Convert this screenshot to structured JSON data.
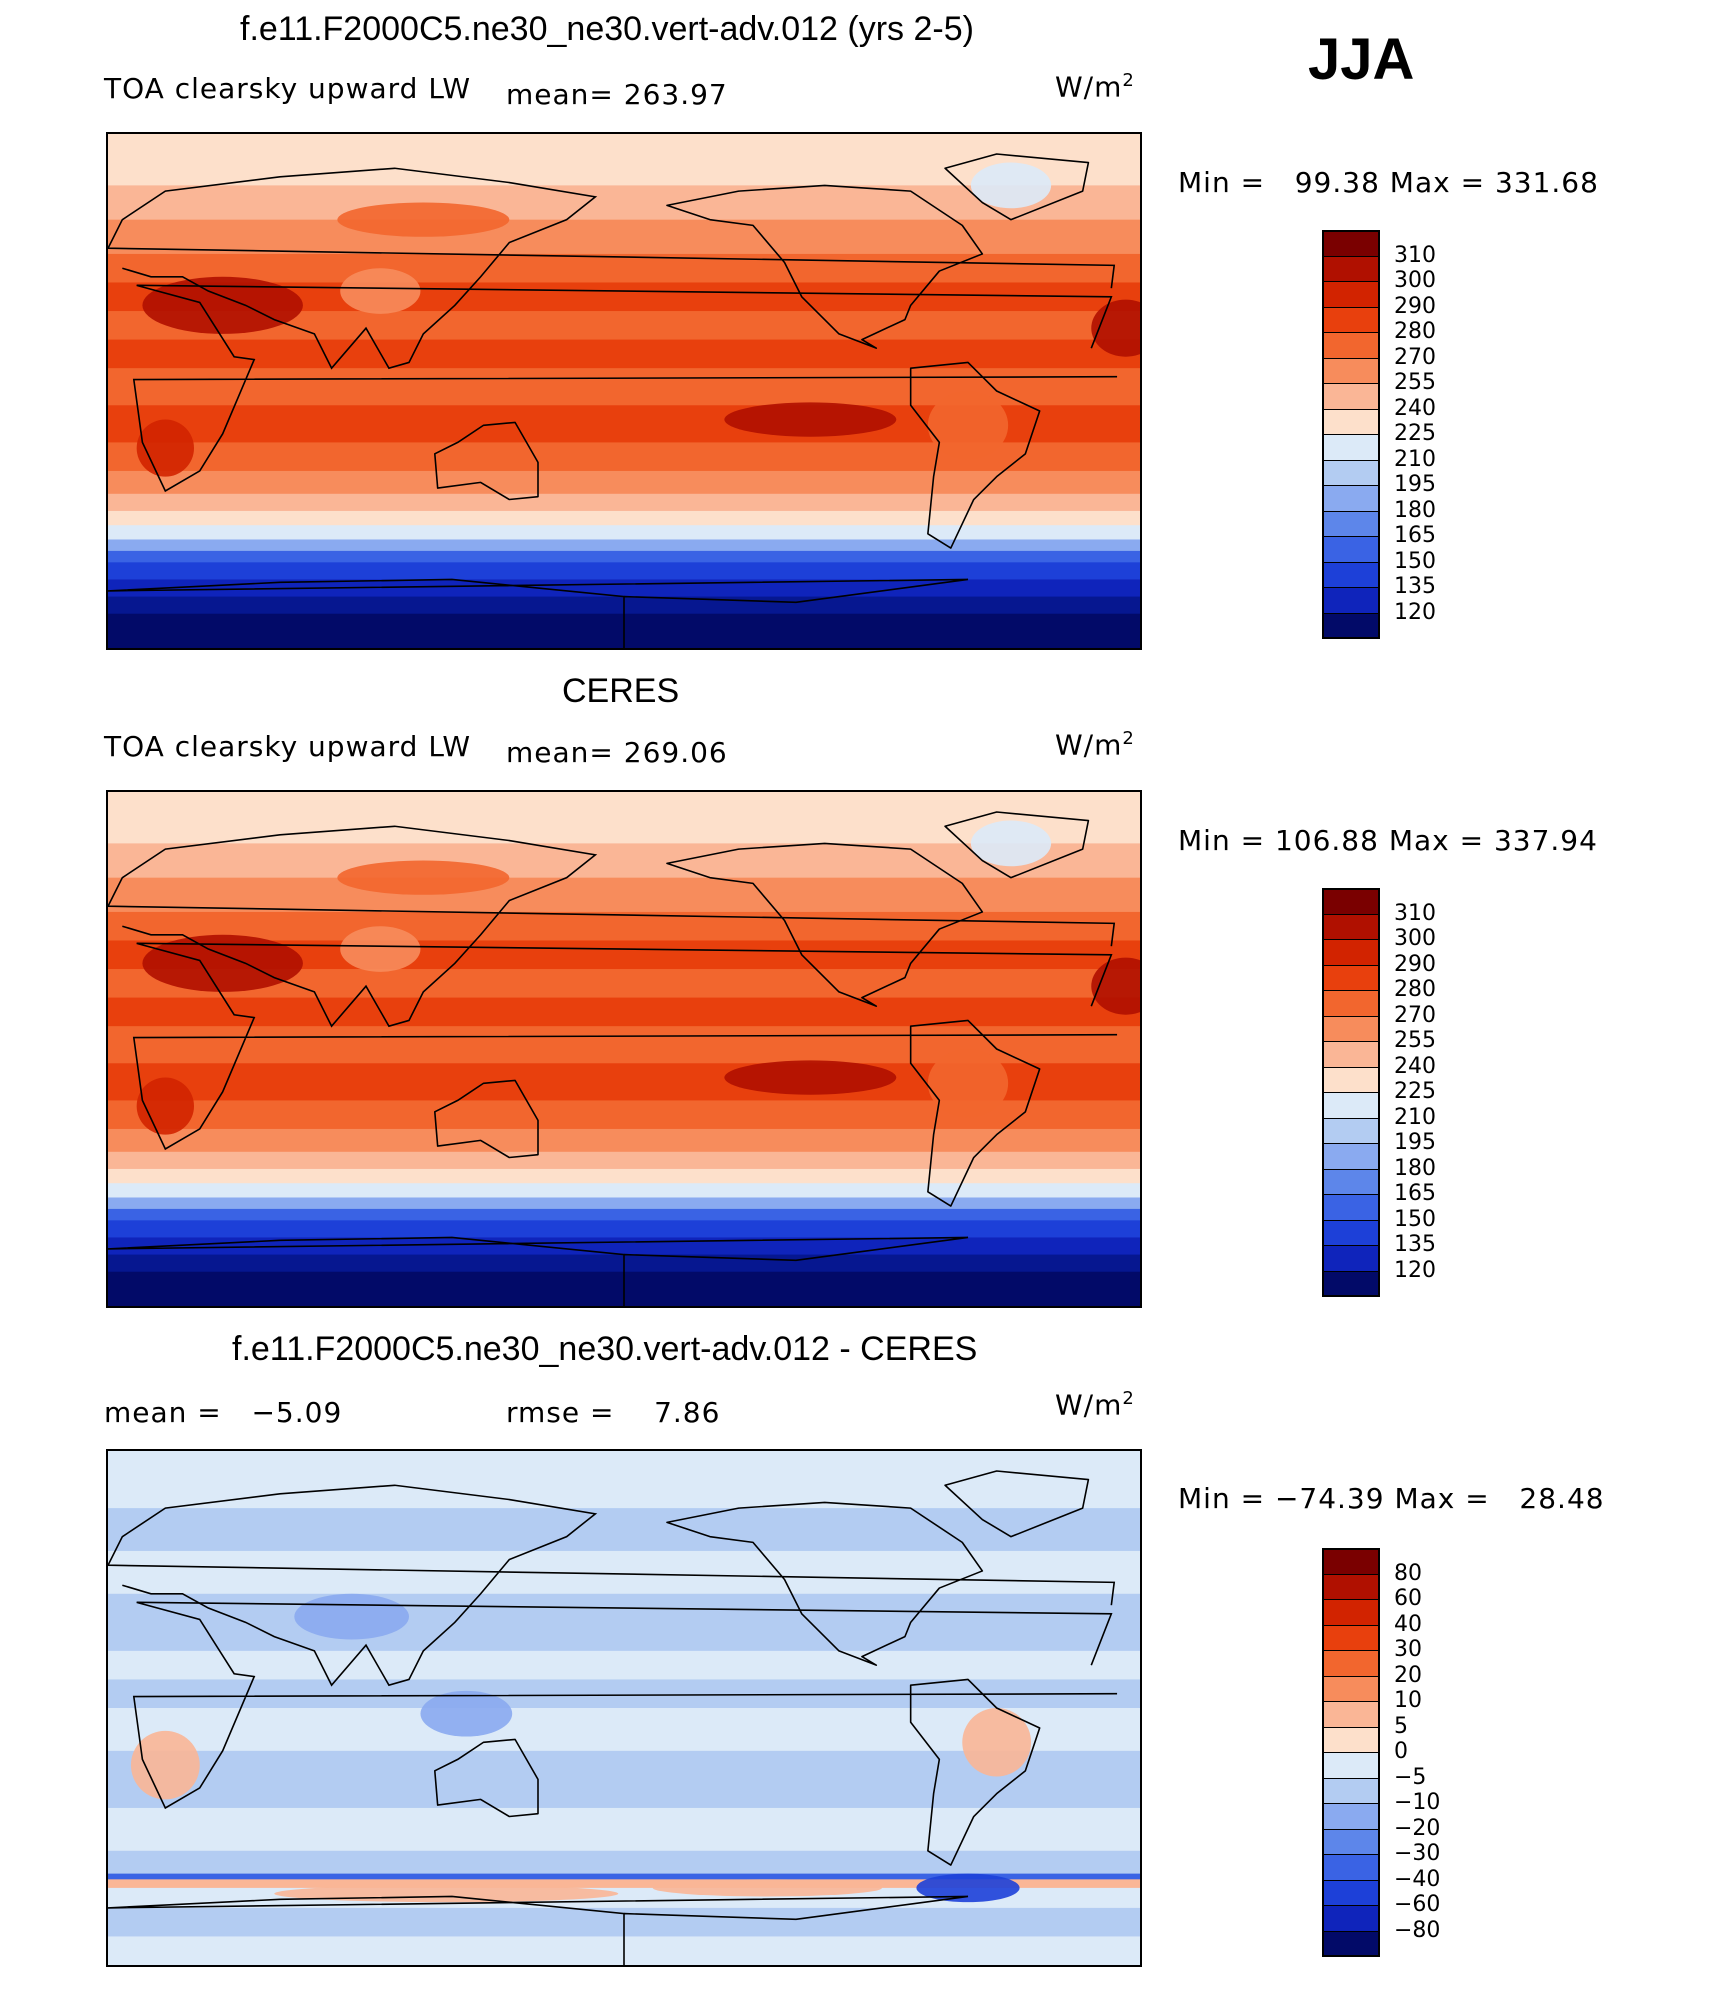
{
  "season": "JJA",
  "units": "W/m",
  "units_exp": "2",
  "panels": [
    {
      "title": "f.e11.F2000C5.ne30_ne30.vert-adv.012 (yrs 2-5)",
      "left_label": "TOA clearsky upward LW",
      "mid_label": "mean= 263.97",
      "minmax": "Min =   99.38 Max = 331.68",
      "colorbar": [
        "310",
        "300",
        "290",
        "280",
        "270",
        "255",
        "240",
        "225",
        "210",
        "195",
        "180",
        "165",
        "150",
        "135",
        "120"
      ],
      "palette": [
        "#7a0000",
        "#b01000",
        "#d22300",
        "#e8400d",
        "#f2662e",
        "#f78c5c",
        "#fab696",
        "#fde0cb",
        "#fdf3e8",
        "#dceaf8",
        "#b3ccf2",
        "#8aaaf0",
        "#5d86ea",
        "#3a63e4",
        "#1d40d8",
        "#0f24bb",
        "#061790",
        "#020a68"
      ]
    },
    {
      "title": "CERES",
      "left_label": "TOA clearsky upward LW",
      "mid_label": "mean= 269.06",
      "minmax": "Min = 106.88 Max = 337.94",
      "colorbar": [
        "310",
        "300",
        "290",
        "280",
        "270",
        "255",
        "240",
        "225",
        "210",
        "195",
        "180",
        "165",
        "150",
        "135",
        "120"
      ],
      "palette": [
        "#7a0000",
        "#b01000",
        "#d22300",
        "#e8400d",
        "#f2662e",
        "#f78c5c",
        "#fab696",
        "#fde0cb",
        "#fdf3e8",
        "#dceaf8",
        "#b3ccf2",
        "#8aaaf0",
        "#5d86ea",
        "#3a63e4",
        "#1d40d8",
        "#0f24bb",
        "#061790",
        "#020a68"
      ]
    },
    {
      "title": "f.e11.F2000C5.ne30_ne30.vert-adv.012 - CERES",
      "left_label": "mean =   −5.09",
      "mid_label": "rmse =    7.86",
      "minmax": "Min = −74.39 Max =   28.48",
      "colorbar": [
        "80",
        "60",
        "40",
        "30",
        "20",
        "10",
        "5",
        "0",
        "−5",
        "−10",
        "−20",
        "−30",
        "−40",
        "−60",
        "−80"
      ],
      "palette": [
        "#7a0000",
        "#b01000",
        "#d22300",
        "#e8400d",
        "#f2662e",
        "#f78c5c",
        "#fab696",
        "#fde0cb",
        "#fdf3e8",
        "#dceaf8",
        "#b3ccf2",
        "#8aaaf0",
        "#5d86ea",
        "#3a63e4",
        "#1d40d8",
        "#0f24bb",
        "#061790",
        "#020a68"
      ]
    }
  ],
  "chart_data": [
    {
      "type": "heatmap",
      "title": "f.e11.F2000C5.ne30_ne30.vert-adv.012 (yrs 2-5)",
      "subtitle": "TOA clearsky upward LW",
      "units": "W/m2",
      "mean": 263.97,
      "min": 99.38,
      "max": 331.68,
      "contour_levels": [
        120,
        135,
        150,
        165,
        180,
        195,
        210,
        225,
        240,
        255,
        270,
        280,
        290,
        300,
        310
      ]
    },
    {
      "type": "heatmap",
      "title": "CERES",
      "subtitle": "TOA clearsky upward LW",
      "units": "W/m2",
      "mean": 269.06,
      "min": 106.88,
      "max": 337.94,
      "contour_levels": [
        120,
        135,
        150,
        165,
        180,
        195,
        210,
        225,
        240,
        255,
        270,
        280,
        290,
        300,
        310
      ]
    },
    {
      "type": "heatmap",
      "title": "f.e11.F2000C5.ne30_ne30.vert-adv.012 - CERES",
      "units": "W/m2",
      "mean": -5.09,
      "rmse": 7.86,
      "min": -74.39,
      "max": 28.48,
      "contour_levels": [
        -80,
        -60,
        -40,
        -30,
        -20,
        -10,
        -5,
        0,
        5,
        10,
        20,
        30,
        40,
        60,
        80
      ]
    }
  ]
}
